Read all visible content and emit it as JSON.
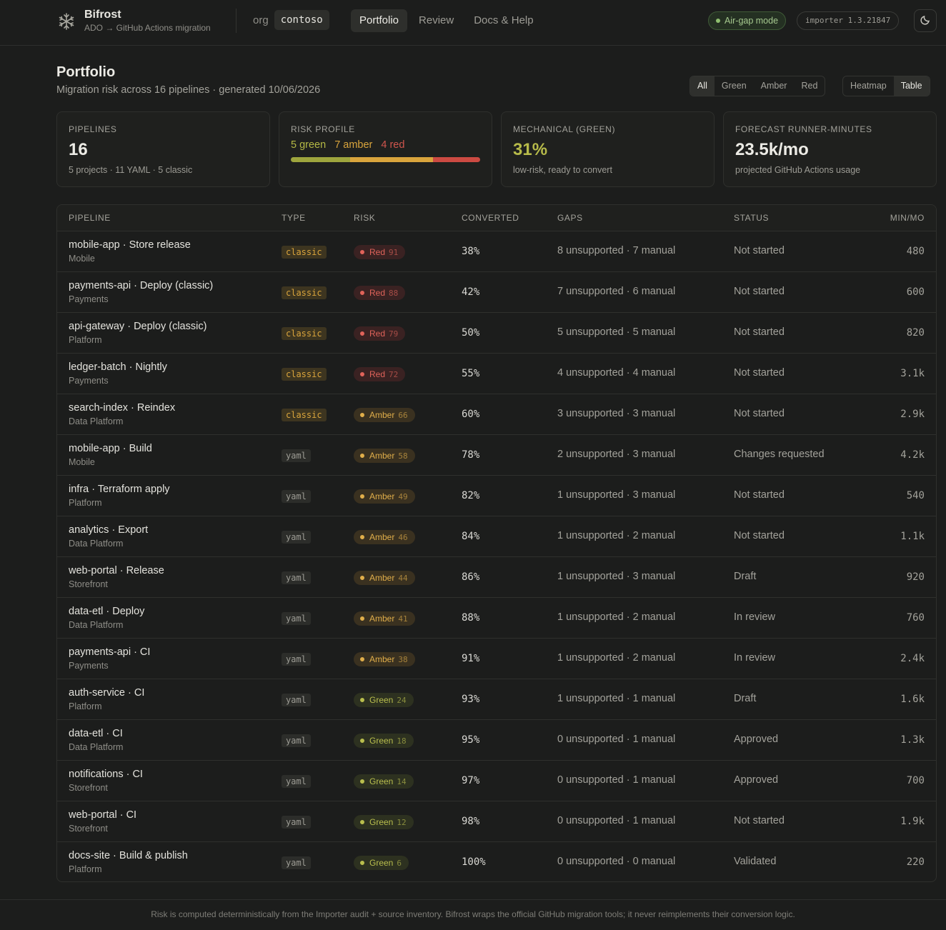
{
  "app": {
    "name": "Bifrost",
    "subtitle": "ADO → GitHub Actions migration",
    "icon": "snowflake-icon"
  },
  "org": {
    "label": "org",
    "value": "contoso"
  },
  "nav": {
    "tabs": [
      {
        "label": "Portfolio",
        "active": true
      },
      {
        "label": "Review",
        "active": false
      },
      {
        "label": "Docs & Help",
        "active": false
      }
    ]
  },
  "header_right": {
    "airgap_label": "Air-gap mode",
    "version_label": "importer 1.3.21847",
    "theme_icon": "moon-icon"
  },
  "page": {
    "title": "Portfolio",
    "subtitle": "Migration risk across 16 pipelines · generated 10/06/2026"
  },
  "filters": {
    "risk": [
      "All",
      "Green",
      "Amber",
      "Red"
    ],
    "risk_selected": "All",
    "views": [
      "Heatmap",
      "Table"
    ],
    "view_selected": "Table"
  },
  "cards": {
    "pipelines": {
      "label": "Pipelines",
      "value": "16",
      "note": "5 projects · 11 YAML · 5 classic"
    },
    "risk_profile": {
      "label": "Risk profile",
      "green": "5 green",
      "amber": "7 amber",
      "red": "4 red",
      "green_count": 5,
      "amber_count": 7,
      "red_count": 4
    },
    "mechanical": {
      "label": "Mechanical (green)",
      "value": "31%",
      "note": "low-risk, ready to convert"
    },
    "forecast": {
      "label": "Forecast runner-minutes",
      "value": "23.5k/mo",
      "note": "projected GitHub Actions usage"
    }
  },
  "colors": {
    "green": "#b4b845",
    "amber": "#d9a43c",
    "red": "#d0554d",
    "background": "#1c1d1c"
  },
  "table": {
    "headers": {
      "pipeline": "Pipeline",
      "type": "Type",
      "risk": "Risk",
      "converted": "Converted",
      "gaps": "Gaps",
      "status": "Status",
      "minmo": "Min/Mo"
    },
    "rows": [
      {
        "name": "mobile-app · Store release",
        "project": "Mobile",
        "type": "classic",
        "risk": "Red",
        "score": "91",
        "converted": "38%",
        "gaps": "8 unsupported · 7 manual",
        "status": "Not started",
        "minmo": "480"
      },
      {
        "name": "payments-api · Deploy (classic)",
        "project": "Payments",
        "type": "classic",
        "risk": "Red",
        "score": "88",
        "converted": "42%",
        "gaps": "7 unsupported · 6 manual",
        "status": "Not started",
        "minmo": "600"
      },
      {
        "name": "api-gateway · Deploy (classic)",
        "project": "Platform",
        "type": "classic",
        "risk": "Red",
        "score": "79",
        "converted": "50%",
        "gaps": "5 unsupported · 5 manual",
        "status": "Not started",
        "minmo": "820"
      },
      {
        "name": "ledger-batch · Nightly",
        "project": "Payments",
        "type": "classic",
        "risk": "Red",
        "score": "72",
        "converted": "55%",
        "gaps": "4 unsupported · 4 manual",
        "status": "Not started",
        "minmo": "3.1k"
      },
      {
        "name": "search-index · Reindex",
        "project": "Data Platform",
        "type": "classic",
        "risk": "Amber",
        "score": "66",
        "converted": "60%",
        "gaps": "3 unsupported · 3 manual",
        "status": "Not started",
        "minmo": "2.9k"
      },
      {
        "name": "mobile-app · Build",
        "project": "Mobile",
        "type": "yaml",
        "risk": "Amber",
        "score": "58",
        "converted": "78%",
        "gaps": "2 unsupported · 3 manual",
        "status": "Changes requested",
        "minmo": "4.2k"
      },
      {
        "name": "infra · Terraform apply",
        "project": "Platform",
        "type": "yaml",
        "risk": "Amber",
        "score": "49",
        "converted": "82%",
        "gaps": "1 unsupported · 3 manual",
        "status": "Not started",
        "minmo": "540"
      },
      {
        "name": "analytics · Export",
        "project": "Data Platform",
        "type": "yaml",
        "risk": "Amber",
        "score": "46",
        "converted": "84%",
        "gaps": "1 unsupported · 2 manual",
        "status": "Not started",
        "minmo": "1.1k"
      },
      {
        "name": "web-portal · Release",
        "project": "Storefront",
        "type": "yaml",
        "risk": "Amber",
        "score": "44",
        "converted": "86%",
        "gaps": "1 unsupported · 3 manual",
        "status": "Draft",
        "minmo": "920"
      },
      {
        "name": "data-etl · Deploy",
        "project": "Data Platform",
        "type": "yaml",
        "risk": "Amber",
        "score": "41",
        "converted": "88%",
        "gaps": "1 unsupported · 2 manual",
        "status": "In review",
        "minmo": "760"
      },
      {
        "name": "payments-api · CI",
        "project": "Payments",
        "type": "yaml",
        "risk": "Amber",
        "score": "38",
        "converted": "91%",
        "gaps": "1 unsupported · 2 manual",
        "status": "In review",
        "minmo": "2.4k"
      },
      {
        "name": "auth-service · CI",
        "project": "Platform",
        "type": "yaml",
        "risk": "Green",
        "score": "24",
        "converted": "93%",
        "gaps": "1 unsupported · 1 manual",
        "status": "Draft",
        "minmo": "1.6k"
      },
      {
        "name": "data-etl · CI",
        "project": "Data Platform",
        "type": "yaml",
        "risk": "Green",
        "score": "18",
        "converted": "95%",
        "gaps": "0 unsupported · 1 manual",
        "status": "Approved",
        "minmo": "1.3k"
      },
      {
        "name": "notifications · CI",
        "project": "Storefront",
        "type": "yaml",
        "risk": "Green",
        "score": "14",
        "converted": "97%",
        "gaps": "0 unsupported · 1 manual",
        "status": "Approved",
        "minmo": "700"
      },
      {
        "name": "web-portal · CI",
        "project": "Storefront",
        "type": "yaml",
        "risk": "Green",
        "score": "12",
        "converted": "98%",
        "gaps": "0 unsupported · 1 manual",
        "status": "Not started",
        "minmo": "1.9k"
      },
      {
        "name": "docs-site · Build & publish",
        "project": "Platform",
        "type": "yaml",
        "risk": "Green",
        "score": "6",
        "converted": "100%",
        "gaps": "0 unsupported · 0 manual",
        "status": "Validated",
        "minmo": "220"
      }
    ]
  },
  "footer": {
    "text": "Risk is computed deterministically from the Importer audit + source inventory. Bifrost wraps the official GitHub migration tools; it never reimplements their conversion logic."
  }
}
